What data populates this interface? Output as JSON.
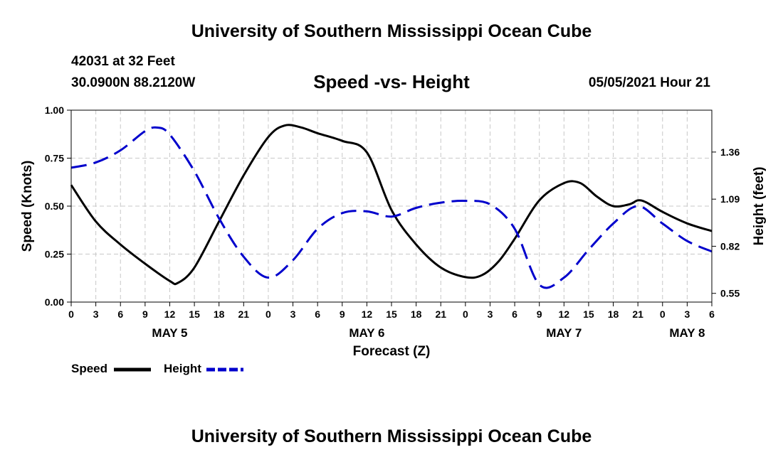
{
  "header": {
    "title": "University of Southern Mississippi Ocean Cube",
    "station": "42031 at 32 Feet",
    "coordinates": "30.0900N  88.2120W",
    "chart_title": "Speed -vs- Height",
    "datetime": "05/05/2021 Hour 21"
  },
  "footer": {
    "title": "University of Southern Mississippi Ocean Cube"
  },
  "legend": {
    "speed_label": "Speed",
    "height_label": "Height"
  },
  "colors": {
    "speed": "#000000",
    "height": "#0000cc",
    "grid": "#c8c8c8"
  },
  "chart_data": {
    "type": "line",
    "title": "Speed -vs- Height",
    "xlabel": "Forecast (Z)",
    "ylabel": "Speed (Knots)",
    "y2label": "Height (feet)",
    "x_ticks": [
      0,
      3,
      6,
      9,
      12,
      15,
      18,
      21,
      24,
      27,
      30,
      33,
      36,
      39,
      42,
      45,
      48,
      51,
      54,
      57,
      60,
      63,
      66,
      69,
      72,
      75,
      78
    ],
    "x_tick_labels": [
      "0",
      "3",
      "6",
      "9",
      "12",
      "15",
      "18",
      "21",
      "0",
      "3",
      "6",
      "9",
      "12",
      "15",
      "18",
      "21",
      "0",
      "3",
      "6",
      "9",
      "12",
      "15",
      "18",
      "21",
      "0",
      "3",
      "6"
    ],
    "day_labels": [
      {
        "label": "MAY 5",
        "x": 12
      },
      {
        "label": "MAY 6",
        "x": 36
      },
      {
        "label": "MAY 7",
        "x": 60
      },
      {
        "label": "MAY 8",
        "x": 75
      }
    ],
    "xlim": [
      0,
      78
    ],
    "ylim": [
      0,
      1
    ],
    "y_ticks": [
      0,
      0.25,
      0.5,
      0.75,
      1.0
    ],
    "y_tick_labels": [
      "0.00",
      "0.25",
      "0.50",
      "0.75",
      "1.00"
    ],
    "y2lim": [
      0.5,
      1.6
    ],
    "y2_ticks": [
      0.55,
      0.82,
      1.09,
      1.36
    ],
    "y2_tick_labels": [
      "0.55",
      "0.82",
      "1.09",
      "1.36"
    ],
    "grid": true,
    "series": [
      {
        "name": "Speed",
        "axis": "left",
        "style": "solid",
        "x": [
          0,
          3,
          6,
          9,
          12,
          13,
          15,
          18,
          21,
          24,
          26,
          28,
          30,
          33,
          36,
          39,
          42,
          45,
          48,
          50,
          52,
          54,
          57,
          60,
          62,
          64,
          66,
          68,
          69,
          70,
          72,
          75,
          78
        ],
        "values": [
          0.61,
          0.42,
          0.3,
          0.2,
          0.11,
          0.1,
          0.18,
          0.42,
          0.66,
          0.86,
          0.92,
          0.91,
          0.88,
          0.84,
          0.78,
          0.48,
          0.3,
          0.18,
          0.13,
          0.14,
          0.21,
          0.33,
          0.53,
          0.62,
          0.62,
          0.55,
          0.5,
          0.51,
          0.53,
          0.52,
          0.47,
          0.41,
          0.37
        ]
      },
      {
        "name": "Height",
        "axis": "right",
        "style": "dashed",
        "x": [
          0,
          3,
          6,
          9,
          10.5,
          12,
          15,
          18,
          21,
          24,
          27,
          30,
          33,
          36,
          39,
          42,
          45,
          48,
          51,
          54,
          57,
          60,
          63,
          66,
          69,
          72,
          75,
          78
        ],
        "values": [
          1.27,
          1.3,
          1.37,
          1.48,
          1.5,
          1.46,
          1.25,
          0.98,
          0.76,
          0.64,
          0.74,
          0.92,
          1.01,
          1.02,
          0.99,
          1.04,
          1.07,
          1.08,
          1.06,
          0.92,
          0.6,
          0.64,
          0.8,
          0.95,
          1.05,
          0.95,
          0.85,
          0.79
        ]
      }
    ]
  }
}
